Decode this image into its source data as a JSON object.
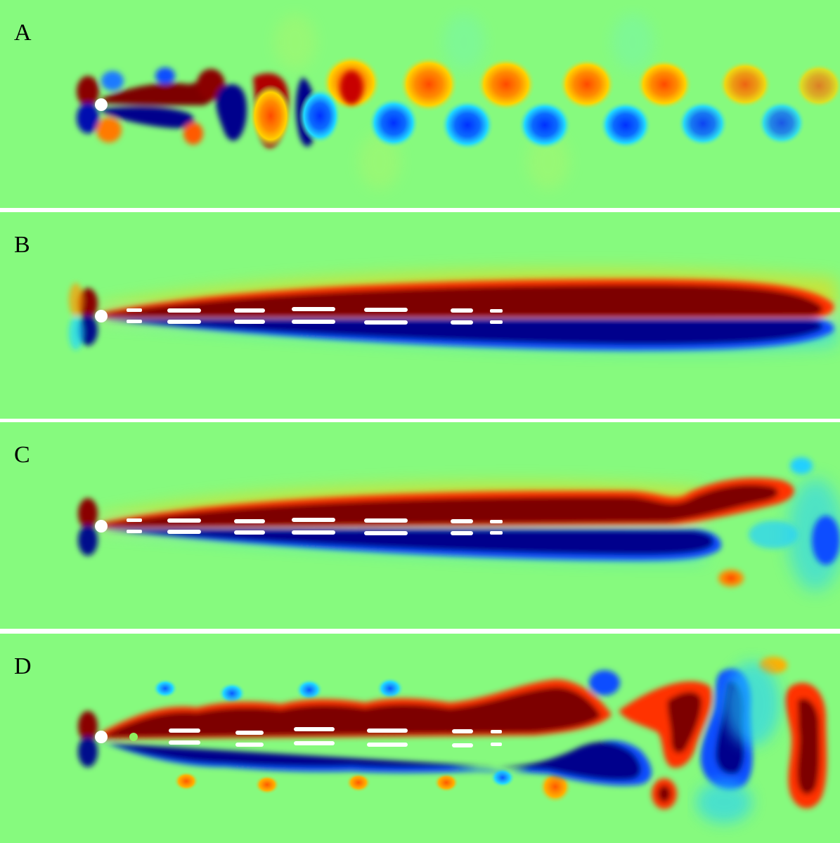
{
  "colors": {
    "background_field": "#86fa7e",
    "dark_red": "#7d0000",
    "red": "#ff2a00",
    "orange": "#ff9a00",
    "yellow": "#f4f53c",
    "cyan": "#22e6ff",
    "blue": "#0a4dff",
    "dark_blue": "#00008c",
    "cylinder": "#ffffff"
  },
  "panels": [
    {
      "label": "A"
    },
    {
      "label": "B"
    },
    {
      "label": "C"
    },
    {
      "label": "D"
    }
  ]
}
